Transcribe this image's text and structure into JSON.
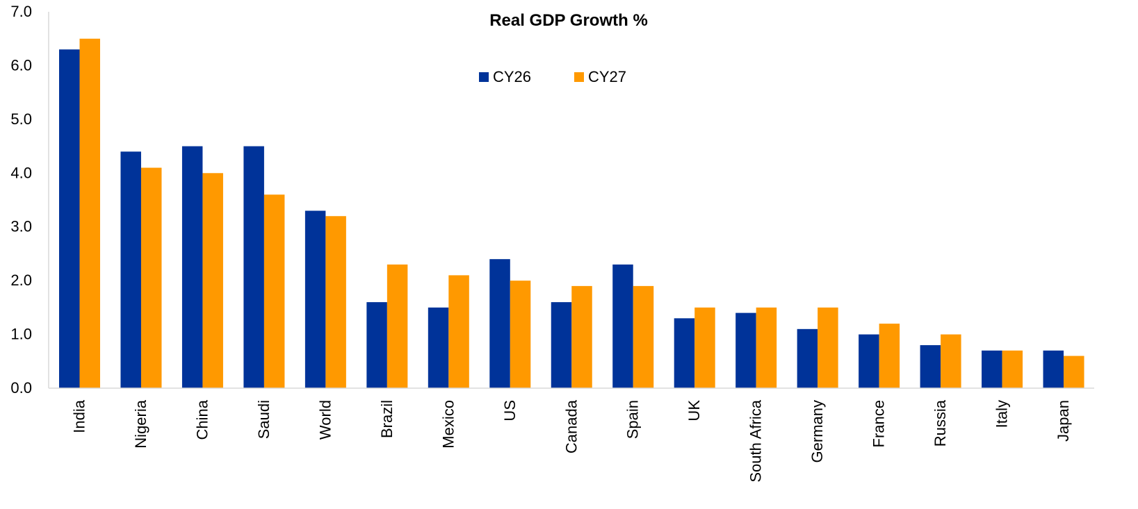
{
  "chart_data": {
    "type": "bar",
    "title": "Real GDP Growth %",
    "xlabel": "",
    "ylabel": "",
    "categories": [
      "India",
      "Nigeria",
      "China",
      "Saudi",
      "World",
      "Brazil",
      "Mexico",
      "US",
      "Canada",
      "Spain",
      "UK",
      "South Africa",
      "Germany",
      "France",
      "Russia",
      "Italy",
      "Japan"
    ],
    "series": [
      {
        "name": "CY26",
        "color": "#003399",
        "values": [
          6.3,
          4.4,
          4.5,
          4.5,
          3.3,
          1.6,
          1.5,
          2.4,
          1.6,
          2.3,
          1.3,
          1.4,
          1.1,
          1.0,
          0.8,
          0.7,
          0.7
        ]
      },
      {
        "name": "CY27",
        "color": "#ff9900",
        "values": [
          6.5,
          4.1,
          4.0,
          3.6,
          3.2,
          2.3,
          2.1,
          2.0,
          1.9,
          1.9,
          1.5,
          1.5,
          1.5,
          1.2,
          1.0,
          0.7,
          0.6
        ]
      }
    ],
    "ylim": [
      0,
      7
    ],
    "yticks": [
      "0.0",
      "1.0",
      "2.0",
      "3.0",
      "4.0",
      "5.0",
      "6.0",
      "7.0"
    ],
    "grid": false,
    "legend_position": "top-center"
  }
}
